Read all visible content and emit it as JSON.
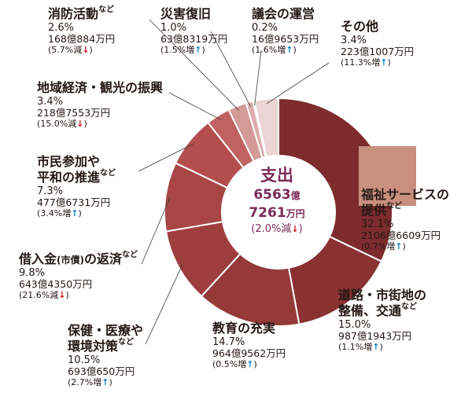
{
  "chart_data": {
    "type": "pie",
    "center": {
      "title": "支出",
      "amount_line1": "6563",
      "amount_line1_unit": "億",
      "amount_line2": "7261",
      "amount_line2_unit": "万円",
      "change": "(2.0%減",
      "change_arrow": "down"
    },
    "slices": [
      {
        "name": "福祉サービスの",
        "name2": "提供",
        "suffix": "など",
        "value": 32.1,
        "percent": "32.1%",
        "amount": "2106億6609万円",
        "change": "(0.7%増",
        "arrow": "up",
        "color": "#7c2c2c"
      },
      {
        "name": "道路・市街地の",
        "name2": "整備、交通",
        "suffix": "など",
        "value": 15.0,
        "percent": "15.0%",
        "amount": "987億1943万円",
        "change": "(1.1%増",
        "arrow": "up",
        "color": "#8a3232"
      },
      {
        "name": "教育の充実",
        "name2": "",
        "suffix": "",
        "value": 14.7,
        "percent": "14.7%",
        "amount": "964億9562万円",
        "change": "(0.5%増",
        "arrow": "up",
        "color": "#943838"
      },
      {
        "name": "保健・医療や",
        "name2": "環境対策",
        "suffix": "など",
        "value": 10.5,
        "percent": "10.5%",
        "amount": "693億650万円",
        "change": "(2.7%増",
        "arrow": "up",
        "color": "#9e3e3e"
      },
      {
        "name": "借入金",
        "name_sub": "(市債)",
        "name_rest": "の返済",
        "name2": "",
        "suffix": "など",
        "value": 9.8,
        "percent": "9.8%",
        "amount": "643億4350万円",
        "change": "(21.6%減",
        "arrow": "down",
        "color": "#a84646"
      },
      {
        "name": "市民参加や",
        "name2": "平和の推進",
        "suffix": "など",
        "value": 7.3,
        "percent": "7.3%",
        "amount": "477億6731万円",
        "change": "(3.4%増",
        "arrow": "up",
        "color": "#b44e4e"
      },
      {
        "name": "地域経済・観光の振興",
        "name2": "",
        "suffix": "",
        "value": 3.4,
        "percent": "3.4%",
        "amount": "218億7553万円",
        "change": "(15.0%減",
        "arrow": "down",
        "color": "#c06262"
      },
      {
        "name": "消防活動",
        "name2": "",
        "suffix": "など",
        "value": 2.6,
        "percent": "2.6%",
        "amount": "168億884万円",
        "change": "(5.7%減",
        "arrow": "down",
        "color": "#d49a98"
      },
      {
        "name": "災害復旧",
        "name2": "",
        "suffix": "",
        "value": 1.0,
        "percent": "1.0%",
        "amount": "63億8319万円",
        "change": "(1.5%増",
        "arrow": "up",
        "color": "#dcaeac"
      },
      {
        "name": "議会の運営",
        "name2": "",
        "suffix": "",
        "value": 0.2,
        "percent": "0.2%",
        "amount": "16億9653万円",
        "change": "(1.6%増",
        "arrow": "up",
        "color": "#e2bcbc"
      },
      {
        "name": "その他",
        "name2": "",
        "suffix": "",
        "value": 3.4,
        "percent": "3.4%",
        "amount": "223億1007万円",
        "change": "(11.3%増",
        "arrow": "up",
        "color": "#ead4d4"
      }
    ]
  }
}
